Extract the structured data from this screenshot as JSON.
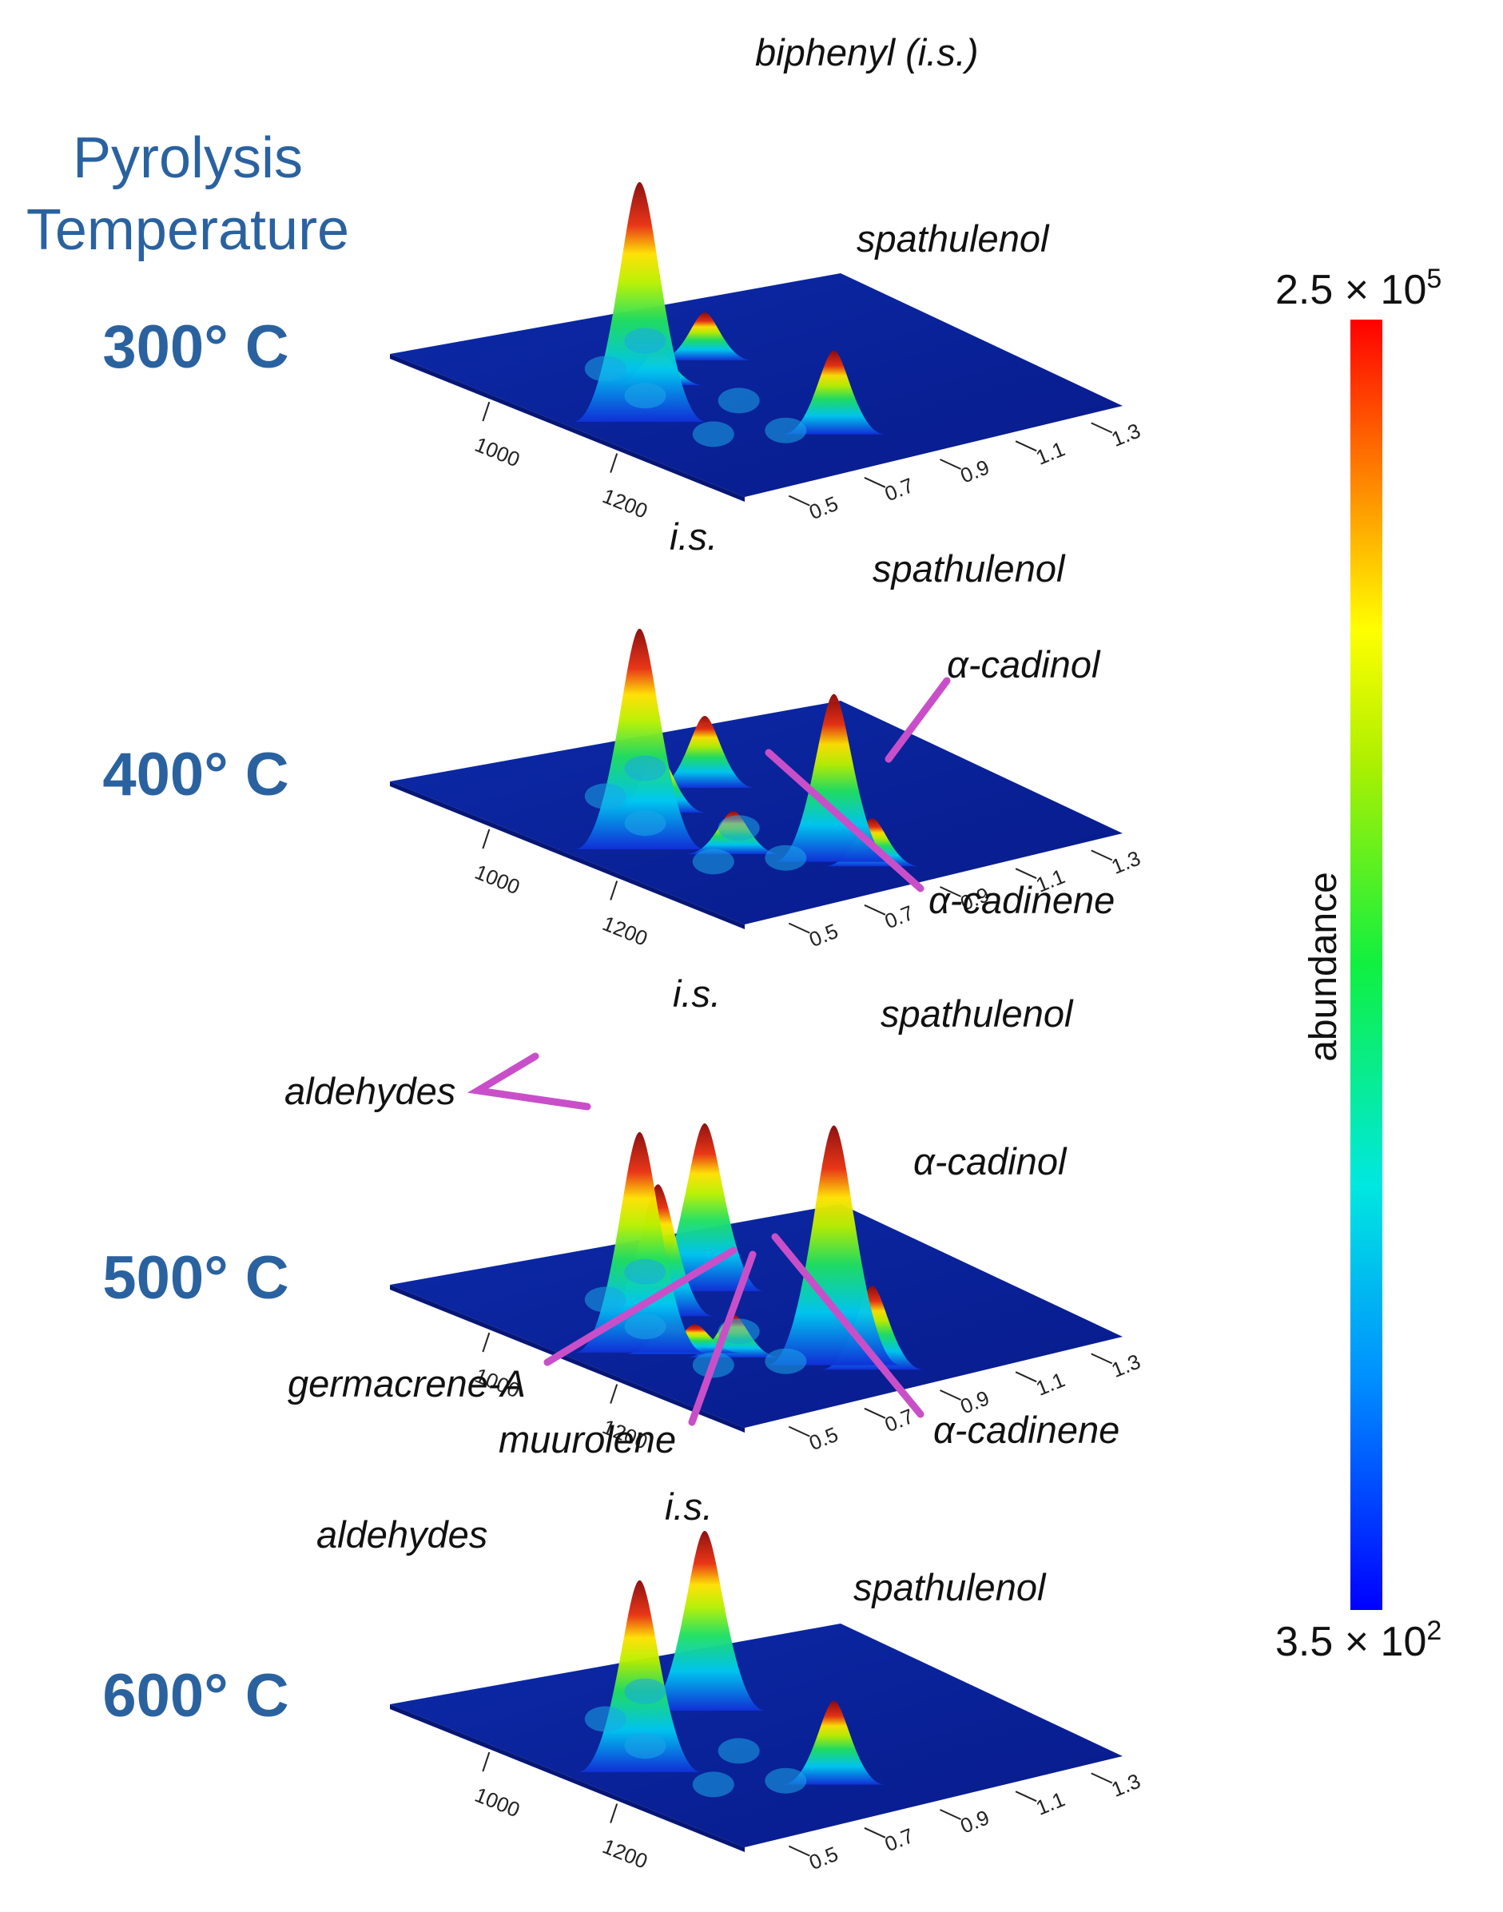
{
  "figure": {
    "title_line1": "Pyrolysis",
    "title_line2": "Temperature",
    "colors": {
      "title": "#2a62a0",
      "pointer": "#c94fc9",
      "plane": "#0a1f9e"
    }
  },
  "colorbar": {
    "label": "abundance",
    "max_mantissa": "2.5 × 10",
    "max_exponent": "5",
    "min_mantissa": "3.5 × 10",
    "min_exponent": "2",
    "colormap": [
      "#0000ff",
      "#00c8ff",
      "#00ff7a",
      "#8cff00",
      "#ffff00",
      "#ff8c00",
      "#ff0000"
    ]
  },
  "chart_data": [
    {
      "type": "surface",
      "temperature": "300° C",
      "x_ticks": [
        "1000",
        "1200"
      ],
      "y_ticks": [
        "0.5",
        "0.7",
        "0.9",
        "1.1",
        "1.3"
      ],
      "peaks": [
        {
          "name": "biphenyl (i.s.)",
          "x": 1180,
          "y": 0.55,
          "rel_height": 1.0
        },
        {
          "name": "spathulenol",
          "x": 1310,
          "y": 0.85,
          "rel_height": 0.35
        },
        {
          "name": "",
          "x": 1080,
          "y": 0.95,
          "rel_height": 0.2
        },
        {
          "name": "",
          "x": 1110,
          "y": 0.75,
          "rel_height": 0.15
        }
      ],
      "labels": {
        "biphenyl (i.s.)": "biphenyl (i.s.)",
        "spathulenol": "spathulenol"
      }
    },
    {
      "type": "surface",
      "temperature": "400° C",
      "x_ticks": [
        "1000",
        "1200"
      ],
      "y_ticks": [
        "0.5",
        "0.7",
        "0.9",
        "1.1",
        "1.3"
      ],
      "peaks": [
        {
          "name": "i.s.",
          "x": 1180,
          "y": 0.55,
          "rel_height": 0.92
        },
        {
          "name": "spathulenol",
          "x": 1310,
          "y": 0.85,
          "rel_height": 0.7
        },
        {
          "name": "α-cadinol",
          "x": 1340,
          "y": 0.9,
          "rel_height": 0.2
        },
        {
          "name": "α-cadinene",
          "x": 1240,
          "y": 0.7,
          "rel_height": 0.18
        },
        {
          "name": "",
          "x": 1080,
          "y": 0.95,
          "rel_height": 0.3
        },
        {
          "name": "",
          "x": 1110,
          "y": 0.75,
          "rel_height": 0.25
        }
      ],
      "labels": {
        "i.s.": "i.s.",
        "spathulenol": "spathulenol",
        "α-cadinol": "α-cadinol",
        "α-cadinene": "α-cadinene"
      }
    },
    {
      "type": "surface",
      "temperature": "500° C",
      "x_ticks": [
        "1000",
        "1200"
      ],
      "y_ticks": [
        "0.5",
        "0.7",
        "0.9",
        "1.1",
        "1.3"
      ],
      "peaks": [
        {
          "name": "i.s.",
          "x": 1180,
          "y": 0.55,
          "rel_height": 0.92
        },
        {
          "name": "spathulenol",
          "x": 1310,
          "y": 0.85,
          "rel_height": 1.0
        },
        {
          "name": "α-cadinol",
          "x": 1340,
          "y": 0.9,
          "rel_height": 0.35
        },
        {
          "name": "aldehydes",
          "x": 1080,
          "y": 0.95,
          "rel_height": 0.7
        },
        {
          "name": "aldehydes",
          "x": 1110,
          "y": 0.75,
          "rel_height": 0.55
        },
        {
          "name": "germacrene-A",
          "x": 1200,
          "y": 0.6,
          "rel_height": 0.15
        },
        {
          "name": "muurolene",
          "x": 1210,
          "y": 0.65,
          "rel_height": 0.12
        },
        {
          "name": "α-cadinene",
          "x": 1240,
          "y": 0.7,
          "rel_height": 0.18
        }
      ],
      "labels": {
        "i.s.": "i.s.",
        "spathulenol": "spathulenol",
        "α-cadinol": "α-cadinol",
        "aldehydes": "aldehydes",
        "germacrene-A": "germacrene-A",
        "muurolene": "muurolene",
        "α-cadinene": "α-cadinene"
      }
    },
    {
      "type": "surface",
      "temperature": "600° C",
      "x_ticks": [
        "1000",
        "1200"
      ],
      "y_ticks": [
        "0.5",
        "0.7",
        "0.9",
        "1.1",
        "1.3"
      ],
      "peaks": [
        {
          "name": "i.s.",
          "x": 1180,
          "y": 0.55,
          "rel_height": 0.8
        },
        {
          "name": "aldehydes",
          "x": 1080,
          "y": 0.95,
          "rel_height": 0.75
        },
        {
          "name": "spathulenol",
          "x": 1310,
          "y": 0.85,
          "rel_height": 0.35
        }
      ],
      "labels": {
        "i.s.": "i.s.",
        "aldehydes": "aldehydes",
        "spathulenol": "spathulenol"
      }
    }
  ]
}
